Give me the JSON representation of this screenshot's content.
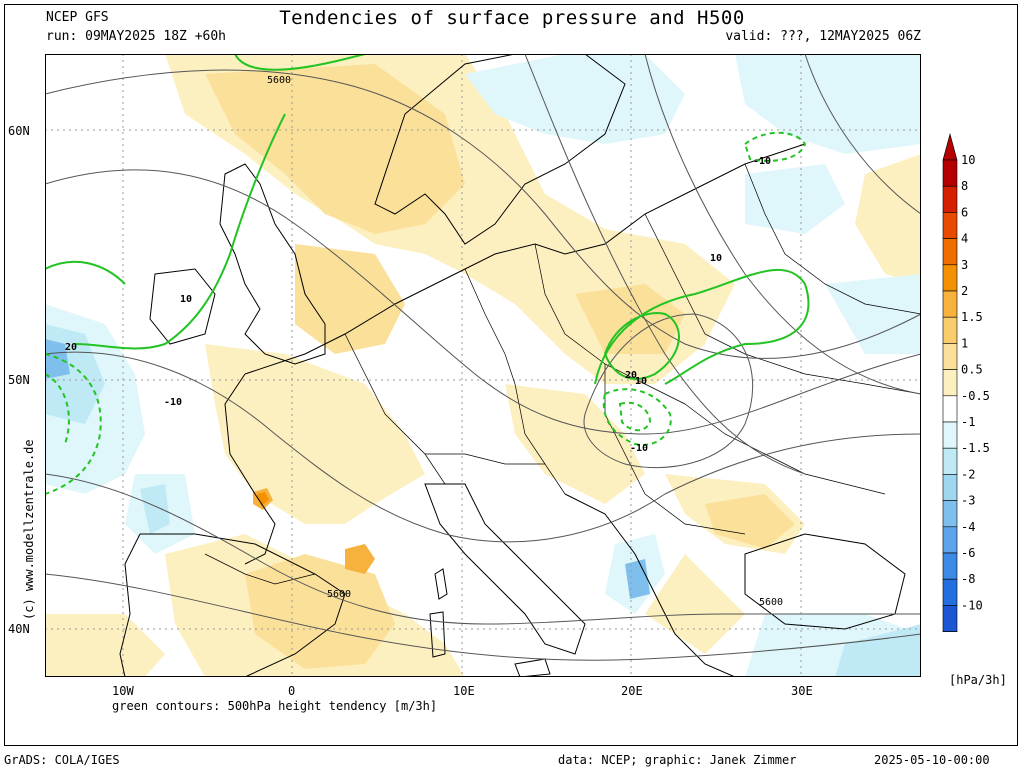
{
  "header": {
    "model": "NCEP GFS",
    "title": "Tendencies of surface pressure and H500",
    "run": "run: 09MAY2025 18Z +60h",
    "valid": "valid: ???, 12MAY2025 06Z"
  },
  "axes": {
    "lat_labels": [
      "60N",
      "50N",
      "40N"
    ],
    "lon_labels": [
      "10W",
      "0",
      "10E",
      "20E",
      "30E"
    ]
  },
  "contours": {
    "height_labels": [
      "5600",
      "5600",
      "5600"
    ],
    "tendency_labels": [
      "10",
      "20",
      "-10",
      "10",
      "20",
      "10",
      "-10",
      "-10"
    ]
  },
  "legend": {
    "levels": [
      "10",
      "8",
      "6",
      "4",
      "3",
      "2",
      "1.5",
      "1",
      "0.5",
      "-0.5",
      "-1",
      "-1.5",
      "-2",
      "-3",
      "-4",
      "-6",
      "-8",
      "-10"
    ],
    "colors": [
      "#b40000",
      "#d52000",
      "#e84a00",
      "#f06d00",
      "#f39100",
      "#f7b23e",
      "#f9cc6c",
      "#fbe09a",
      "#fdf0c0",
      "#ffffff",
      "#dff6fa",
      "#bfeaf5",
      "#9fd7f1",
      "#7fbfee",
      "#5ea4ea",
      "#3d89e6",
      "#236fe0",
      "#1b57d5"
    ],
    "unit": "[hPa/3h]"
  },
  "footer": {
    "contour_note": "green contours: 500hPa height tendency [m/3h]",
    "credit_left": "GrADS: COLA/IGES",
    "credit_mid": "data: NCEP; graphic: Janek Zimmer",
    "timestamp": "2025-05-10-00:00",
    "watermark": "(c) www.modellzentrale.de"
  }
}
